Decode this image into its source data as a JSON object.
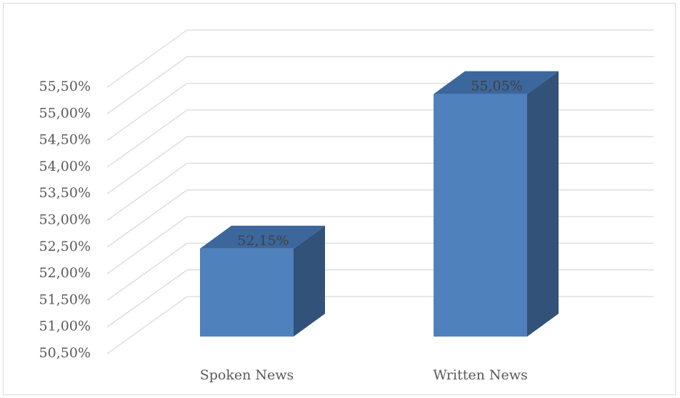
{
  "chart_data": {
    "type": "bar3d",
    "categories": [
      "Spoken News",
      "Written News"
    ],
    "values": [
      52.15,
      55.05
    ],
    "value_labels": [
      "52,15%",
      "55,05%"
    ],
    "color": "#4f81bd",
    "ylim": [
      50.5,
      55.5
    ],
    "yticks": [
      {
        "value": 50.5,
        "label": "50,50%"
      },
      {
        "value": 51,
        "label": "51,00%"
      },
      {
        "value": 51.5,
        "label": "51,50%"
      },
      {
        "value": 52,
        "label": "52,00%"
      },
      {
        "value": 52.5,
        "label": "52,50%"
      },
      {
        "value": 53,
        "label": "53,00%"
      },
      {
        "value": 53.5,
        "label": "53,50%"
      },
      {
        "value": 54,
        "label": "54,00%"
      },
      {
        "value": 54.5,
        "label": "54,50%"
      },
      {
        "value": 55,
        "label": "55,00%"
      },
      {
        "value": 55.5,
        "label": "55,50%"
      }
    ],
    "grid": true
  }
}
